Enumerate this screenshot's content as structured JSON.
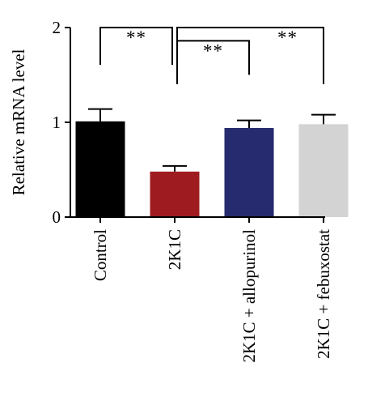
{
  "chart_data": {
    "type": "bar",
    "title": "",
    "xlabel": "",
    "ylabel": "Relative mRNA level",
    "ylim": [
      0,
      2
    ],
    "yticks": [
      0,
      1,
      2
    ],
    "categories": [
      "Control",
      "2K1C",
      "2K1C + allopurinol",
      "2K1C + febuxostat"
    ],
    "values": [
      1.01,
      0.48,
      0.94,
      0.98
    ],
    "errors": [
      0.13,
      0.06,
      0.08,
      0.1
    ],
    "colors": [
      "#000000",
      "#9e1c20",
      "#262a6e",
      "#d3d3d3"
    ],
    "grid": false,
    "significance": [
      {
        "from": "Control",
        "to": "2K1C",
        "label": "**",
        "level": 2.0
      },
      {
        "from": "2K1C",
        "to": "2K1C + allopurinol",
        "label": "**",
        "level": 1.86
      },
      {
        "from": "2K1C",
        "to": "2K1C + febuxostat",
        "label": "**",
        "level": 2.0
      }
    ]
  }
}
